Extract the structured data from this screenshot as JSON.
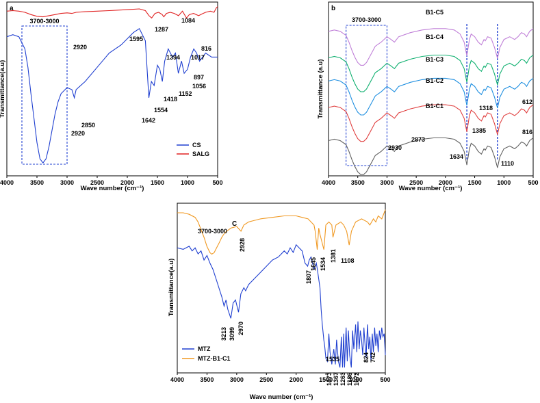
{
  "chart_data": [
    {
      "type": "line",
      "panel_label": "a",
      "xlabel": "Wave number (cm⁻¹)",
      "ylabel": "Transmittance(a.u)",
      "xlim": [
        4000,
        500
      ],
      "ylim": [
        0,
        100
      ],
      "xticks": [
        4000,
        3500,
        3000,
        2500,
        2000,
        1500,
        1000,
        500
      ],
      "legend": {
        "position": "bottom-right",
        "entries": [
          {
            "name": "CS",
            "color": "#1f3fd0"
          },
          {
            "name": "SALG",
            "color": "#e02020"
          }
        ]
      },
      "box": {
        "from": 3750,
        "to": 3000,
        "label": "3700-3000"
      },
      "series": [
        {
          "name": "SALG",
          "color": "#e02020",
          "x": [
            4000,
            3900,
            3800,
            3700,
            3600,
            3500,
            3400,
            3300,
            3200,
            3100,
            3000,
            2920,
            2850,
            2700,
            2500,
            2300,
            2100,
            1950,
            1800,
            1700,
            1640,
            1595,
            1540,
            1480,
            1420,
            1394,
            1350,
            1287,
            1220,
            1150,
            1084,
            1040,
            1017,
            970,
            900,
            816,
            760,
            700,
            620,
            560,
            520,
            500
          ],
          "y": [
            92,
            93,
            92,
            90,
            86,
            83,
            82,
            84,
            86,
            88,
            89,
            88,
            90,
            91,
            92,
            93,
            94,
            95,
            96,
            93,
            84,
            80,
            88,
            90,
            86,
            82,
            88,
            90,
            88,
            84,
            92,
            84,
            80,
            86,
            88,
            84,
            87,
            90,
            92,
            90,
            98,
            100
          ]
        },
        {
          "name": "CS",
          "color": "#1f3fd0",
          "x": [
            4000,
            3900,
            3800,
            3700,
            3650,
            3600,
            3550,
            3500,
            3450,
            3400,
            3350,
            3300,
            3250,
            3200,
            3150,
            3100,
            3000,
            2920,
            2880,
            2850,
            2700,
            2500,
            2300,
            2100,
            1900,
            1800,
            1700,
            1642,
            1600,
            1554,
            1500,
            1460,
            1418,
            1380,
            1320,
            1250,
            1200,
            1152,
            1100,
            1056,
            1000,
            950,
            897,
            850,
            800,
            700,
            600,
            500
          ],
          "y": [
            70,
            71,
            70,
            64,
            55,
            42,
            30,
            18,
            10,
            8,
            10,
            16,
            24,
            32,
            38,
            42,
            45,
            44,
            40,
            44,
            48,
            55,
            62,
            66,
            72,
            74,
            68,
            40,
            48,
            46,
            56,
            54,
            48,
            58,
            64,
            60,
            62,
            52,
            58,
            52,
            54,
            60,
            64,
            62,
            58,
            62,
            60,
            60
          ]
        }
      ],
      "annotations": [
        {
          "text": "2920",
          "x": 2920
        },
        {
          "text": "1595",
          "x": 1595
        },
        {
          "text": "1287",
          "x": 1287
        },
        {
          "text": "1394",
          "x": 1394
        },
        {
          "text": "1084",
          "x": 1084
        },
        {
          "text": "1017",
          "x": 1017
        },
        {
          "text": "816",
          "x": 816
        },
        {
          "text": "2850",
          "x": 2850
        },
        {
          "text": "2920",
          "x": 2920
        },
        {
          "text": "1642",
          "x": 1642
        },
        {
          "text": "1554",
          "x": 1554
        },
        {
          "text": "1418",
          "x": 1418
        },
        {
          "text": "1152",
          "x": 1152
        },
        {
          "text": "1056",
          "x": 1056
        },
        {
          "text": "897",
          "x": 897
        }
      ]
    },
    {
      "type": "line",
      "panel_label": "b",
      "xlabel": "Wave number (cm⁻¹)",
      "ylabel": "Transmittance (a.u)",
      "xlim": [
        4000,
        500
      ],
      "ylim": [
        0,
        100
      ],
      "xticks": [
        4000,
        3500,
        3000,
        2500,
        2000,
        1500,
        1000,
        500
      ],
      "box": {
        "from": 3700,
        "to": 3000,
        "label": "3700-3000"
      },
      "dashed_lines": [
        1634,
        1110
      ],
      "series": [
        {
          "name": "B1-C5",
          "color": "#c080d8",
          "offset": 82
        },
        {
          "name": "B1-C4",
          "color": "#10b070",
          "offset": 66
        },
        {
          "name": "B1-C3",
          "color": "#1f8fe0",
          "offset": 52
        },
        {
          "name": "B1-C2",
          "color": "#e04040",
          "offset": 36
        },
        {
          "name": "B1-C1",
          "color": "#606060",
          "offset": 16
        }
      ],
      "base_shape": {
        "x": [
          4000,
          3900,
          3800,
          3700,
          3650,
          3600,
          3550,
          3500,
          3450,
          3400,
          3350,
          3300,
          3250,
          3200,
          3100,
          3000,
          2930,
          2873,
          2800,
          2600,
          2400,
          2200,
          2000,
          1850,
          1750,
          1680,
          1634,
          1590,
          1560,
          1500,
          1440,
          1385,
          1340,
          1318,
          1280,
          1220,
          1160,
          1110,
          1070,
          1000,
          900,
          816,
          760,
          700,
          650,
          612,
          560,
          500
        ],
        "y": [
          20,
          21,
          20,
          17,
          12,
          6,
          1,
          -3,
          -5,
          -5,
          -3,
          1,
          5,
          9,
          12,
          16,
          14,
          12,
          16,
          19,
          21,
          22,
          22,
          21,
          18,
          12,
          2,
          14,
          18,
          16,
          12,
          10,
          14,
          13,
          16,
          15,
          8,
          0,
          8,
          14,
          16,
          14,
          16,
          19,
          18,
          16,
          20,
          22
        ]
      },
      "annotations": [
        {
          "text": "B1-C5"
        },
        {
          "text": "B1-C4"
        },
        {
          "text": "B1-C3"
        },
        {
          "text": "B1-C2"
        },
        {
          "text": "B1-C1"
        },
        {
          "text": "2930",
          "x": 2930
        },
        {
          "text": "2873",
          "x": 2873
        },
        {
          "text": "1634",
          "x": 1634
        },
        {
          "text": "1385",
          "x": 1385
        },
        {
          "text": "1318",
          "x": 1318
        },
        {
          "text": "1110",
          "x": 1110
        },
        {
          "text": "816",
          "x": 816
        },
        {
          "text": "612",
          "x": 612
        }
      ]
    },
    {
      "type": "line",
      "panel_label": "C",
      "xlabel": "Wave number (cm⁻¹)",
      "ylabel": "Transmittance(a.u)",
      "xlim": [
        4000,
        500
      ],
      "ylim": [
        0,
        100
      ],
      "xticks": [
        4000,
        3500,
        3000,
        2500,
        2000,
        1500,
        1000,
        500
      ],
      "legend": {
        "position": "bottom-left",
        "entries": [
          {
            "name": "MTZ",
            "color": "#1f3fd0"
          },
          {
            "name": "MTZ-B1-C1",
            "color": "#f09820"
          }
        ]
      },
      "series": [
        {
          "name": "MTZ-B1-C1",
          "color": "#f09820",
          "x": [
            4000,
            3900,
            3800,
            3700,
            3650,
            3600,
            3550,
            3500,
            3450,
            3420,
            3380,
            3340,
            3300,
            3250,
            3200,
            3100,
            3000,
            2928,
            2880,
            2800,
            2600,
            2400,
            2200,
            2000,
            1900,
            1800,
            1700,
            1680,
            1645,
            1620,
            1600,
            1560,
            1534,
            1500,
            1450,
            1400,
            1381,
            1330,
            1250,
            1200,
            1150,
            1108,
            1070,
            1000,
            900,
            800,
            760,
            700,
            660,
            620,
            560,
            520,
            500
          ],
          "y": [
            96,
            96,
            95,
            93,
            90,
            85,
            80,
            74,
            70,
            69,
            70,
            73,
            76,
            80,
            83,
            86,
            87,
            84,
            88,
            90,
            92,
            93,
            94,
            94,
            93,
            92,
            88,
            84,
            72,
            86,
            82,
            76,
            72,
            88,
            90,
            88,
            80,
            88,
            90,
            88,
            84,
            75,
            84,
            90,
            92,
            90,
            88,
            92,
            90,
            94,
            92,
            96,
            98
          ]
        },
        {
          "name": "MTZ",
          "color": "#1f3fd0",
          "x": [
            4000,
            3900,
            3800,
            3750,
            3700,
            3650,
            3600,
            3550,
            3500,
            3450,
            3400,
            3350,
            3300,
            3250,
            3213,
            3180,
            3150,
            3099,
            3060,
            3020,
            2970,
            2930,
            2880,
            2850,
            2800,
            2700,
            2600,
            2500,
            2400,
            2300,
            2200,
            2150,
            2100,
            2050,
            2000,
            1950,
            1900,
            1850,
            1807,
            1780,
            1750,
            1700,
            1660,
            1640,
            1600,
            1580,
            1560,
            1540,
            1535,
            1520,
            1500,
            1473,
            1450,
            1430,
            1400,
            1367,
            1340,
            1320,
            1290,
            1263,
            1240,
            1220,
            1200,
            1186,
            1160,
            1140,
            1120,
            1100,
            1072,
            1050,
            1030,
            1000,
            980,
            960,
            940,
            920,
            900,
            880,
            860,
            840,
            824,
            800,
            780,
            760,
            742,
            720,
            700,
            680,
            660,
            640,
            620,
            600,
            580,
            560,
            540,
            520,
            510,
            500
          ],
          "y": [
            70,
            69,
            71,
            68,
            70,
            66,
            68,
            62,
            65,
            60,
            56,
            50,
            44,
            38,
            32,
            36,
            30,
            24,
            34,
            36,
            28,
            40,
            44,
            42,
            46,
            50,
            54,
            58,
            62,
            64,
            68,
            66,
            70,
            67,
            72,
            70,
            68,
            60,
            58,
            62,
            64,
            56,
            60,
            55,
            44,
            30,
            20,
            12,
            10,
            6,
            -2,
            -4,
            14,
            2,
            -6,
            4,
            -6,
            10,
            -4,
            -8,
            12,
            -8,
            14,
            -8,
            18,
            -4,
            16,
            0,
            -8,
            16,
            4,
            20,
            2,
            22,
            4,
            16,
            10,
            0,
            18,
            6,
            -2,
            20,
            4,
            12,
            -4,
            14,
            2,
            18,
            6,
            14,
            2,
            16,
            10,
            18,
            12,
            14,
            8,
            0
          ]
        }
      ],
      "annotations": [
        {
          "text": "3700-3000",
          "x": 3350
        },
        {
          "text": "2928",
          "x": 2928
        },
        {
          "text": "1645",
          "x": 1645
        },
        {
          "text": "1534",
          "x": 1534
        },
        {
          "text": "1381",
          "x": 1381
        },
        {
          "text": "1108",
          "x": 1108
        },
        {
          "text": "1807",
          "x": 1807
        },
        {
          "text": "3213",
          "x": 3213
        },
        {
          "text": "3099",
          "x": 3099
        },
        {
          "text": "2970",
          "x": 2970
        },
        {
          "text": "1535",
          "x": 1535
        },
        {
          "text": "1473",
          "x": 1473
        },
        {
          "text": "1367",
          "x": 1367
        },
        {
          "text": "1263",
          "x": 1263
        },
        {
          "text": "1186",
          "x": 1186
        },
        {
          "text": "1072",
          "x": 1072
        },
        {
          "text": "824",
          "x": 824
        },
        {
          "text": "742",
          "x": 742
        }
      ]
    }
  ]
}
